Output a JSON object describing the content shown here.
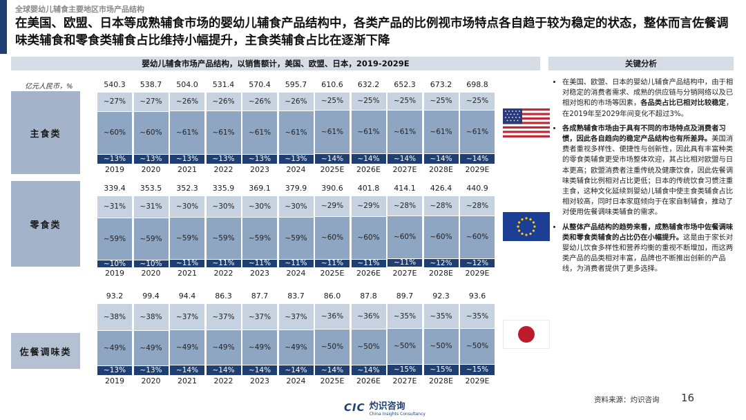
{
  "header": {
    "breadcrumb": "全球婴幼儿辅食主要地区市场产品结构",
    "headline": "在美国、欧盟、日本等成熟辅食市场的婴幼儿辅食产品结构中，各类产品的比例视市场特点各自趋于较为稳定的状态，整体而言佐餐调味类辅食和零食类辅食占比维持小幅提升，主食类辅食占比在逐渐下降",
    "accent_color": "#1f3f73"
  },
  "chart_data": {
    "type": "bar",
    "title": "婴幼儿辅食市场产品结构，以销售额计，美国、欧盟、日本，2019-2029E",
    "unit": "亿元人民币，%",
    "categories": [
      "2019",
      "2020",
      "2021",
      "2022",
      "2023",
      "2024",
      "2025E",
      "2026E",
      "2027E",
      "2028E",
      "2029E"
    ],
    "rows": [
      {
        "name": "主食类",
        "totals": [
          "540.3",
          "538.7",
          "504.0",
          "531.4",
          "570.4",
          "595.7",
          "610.6",
          "632.2",
          "652.3",
          "673.2",
          "698.8"
        ],
        "series": [
          {
            "name": "top",
            "values": [
              27,
              27,
              26,
              26,
              26,
              26,
              25,
              25,
              25,
              25,
              25
            ],
            "labels": [
              "~27%",
              "~27%",
              "~26%",
              "~26%",
              "~26%",
              "~26%",
              "~25%",
              "~25%",
              "~25%",
              "~25%",
              "~25%"
            ]
          },
          {
            "name": "middle",
            "values": [
              60,
              60,
              61,
              61,
              61,
              61,
              61,
              61,
              61,
              61,
              61
            ],
            "labels": [
              "~60%",
              "~60%",
              "~61%",
              "~61%",
              "~61%",
              "~61%",
              "~61%",
              "~61%",
              "~61%",
              "~61%",
              "~61%"
            ]
          },
          {
            "name": "bottom",
            "values": [
              13,
              13,
              13,
              13,
              13,
              13,
              14,
              14,
              14,
              14,
              14
            ],
            "labels": [
              "~13%",
              "~13%",
              "~13%",
              "~13%",
              "~13%",
              "~13%",
              "~14%",
              "~14%",
              "~14%",
              "~14%",
              "~14%"
            ]
          }
        ]
      },
      {
        "name": "零食类",
        "totals": [
          "339.4",
          "353.5",
          "352.3",
          "335.9",
          "369.1",
          "379.9",
          "390.6",
          "401.8",
          "414.1",
          "426.4",
          "440.9"
        ],
        "series": [
          {
            "name": "top",
            "values": [
              31,
              31,
              30,
              30,
              30,
              30,
              29,
              29,
              28,
              28,
              28
            ],
            "labels": [
              "~31%",
              "~31%",
              "~30%",
              "~30%",
              "~30%",
              "~30%",
              "~29%",
              "~29%",
              "~28%",
              "~28%",
              "~28%"
            ]
          },
          {
            "name": "middle",
            "values": [
              59,
              59,
              59,
              59,
              59,
              59,
              60,
              60,
              60,
              60,
              60
            ],
            "labels": [
              "~59%",
              "~59%",
              "~59%",
              "~59%",
              "~59%",
              "~59%",
              "~60%",
              "~60%",
              "~60%",
              "~60%",
              "~60%"
            ]
          },
          {
            "name": "bottom",
            "values": [
              10,
              10,
              11,
              11,
              11,
              11,
              11,
              11,
              11,
              12,
              12
            ],
            "labels": [
              "~10%",
              "~10%",
              "~11%",
              "~11%",
              "~11%",
              "~11%",
              "~11%",
              "~11%",
              "~11%",
              "~12%",
              "~12%"
            ]
          }
        ]
      },
      {
        "name": "佐餐调味类",
        "totals": [
          "93.2",
          "99.4",
          "94.4",
          "86.3",
          "87.7",
          "83.7",
          "86.0",
          "87.8",
          "89.7",
          "92.3",
          "93.6"
        ],
        "series": [
          {
            "name": "top",
            "values": [
              38,
              38,
              37,
              37,
              37,
              37,
              36,
              36,
              35,
              35,
              35
            ],
            "labels": [
              "~38%",
              "~38%",
              "~37%",
              "~37%",
              "~37%",
              "~37%",
              "~36%",
              "~36%",
              "~35%",
              "~35%",
              "~35%"
            ]
          },
          {
            "name": "middle",
            "values": [
              49,
              49,
              49,
              49,
              49,
              49,
              50,
              50,
              50,
              50,
              50
            ],
            "labels": [
              "~49%",
              "~49%",
              "~49%",
              "~49%",
              "~49%",
              "~49%",
              "~50%",
              "~50%",
              "~50%",
              "~50%",
              "~50%"
            ]
          },
          {
            "name": "bottom",
            "values": [
              13,
              13,
              14,
              14,
              14,
              14,
              14,
              14,
              15,
              15,
              15
            ],
            "labels": [
              "~13%",
              "~13%",
              "~14%",
              "~14%",
              "~14%",
              "~14%",
              "~14%",
              "~14%",
              "~15%",
              "~15%",
              "~15%"
            ]
          }
        ]
      }
    ],
    "colors": {
      "top": "#c7d2e0",
      "middle": "#8fa6c3",
      "bottom": "#1f3f73"
    }
  },
  "flags": {
    "us": {
      "name": "united-states"
    },
    "eu": {
      "name": "european-union"
    },
    "jp": {
      "name": "japan"
    }
  },
  "key_findings": {
    "title": "关键分析",
    "bullets": [
      {
        "normal1": "在美国、欧盟、日本的婴幼儿辅食产品结构中，由于相对稳定的消费者需求、成熟的供应链与分销网络以及已相对饱和的市场等因素，",
        "bold": "各品类占比已相对比较稳定",
        "normal2": "，在2019年至2029年间变化不超过3%。"
      },
      {
        "normal1": "",
        "bold": "各成熟辅食市场由于具有不同的市场特点及消费者习惯，因此各自趋向的稳定产品结构也有所差异。",
        "normal2": "美国消费者重视多样性、便捷性与创新性，因此具有丰富种类的零食类辅食更受市场整体欢迎，其占比相对欧盟与日本更高；欧盟消费者注重传统及健康饮食，因此佐餐调味类辅食比例相对占比更低；日本的传统饮食习惯注重主食，这种文化延续到婴幼儿辅食中使主食类辅食占比相对较高，同时日本家庭倾向于在家自制辅食，推动了对使用佐餐调味类辅食的需求。"
      },
      {
        "normal1": "",
        "bold": "从整体产品结构的趋势来看，成熟辅食市场中佐餐调味类和零食类辅食的占比仍在小幅提升。",
        "normal2": "这是由于家长对婴幼儿饮食多样性和营养均衡的重视不断增加，而这两类产品的品类相对丰富，品牌也不断推出创新的产品线，为消费者提供了更多选择。"
      }
    ]
  },
  "footer": {
    "logo_en_short": "CIC",
    "logo_cn": "灼识咨询",
    "logo_en": "China Insights Consultancy",
    "source": "资料来源：灼识咨询",
    "page_number": "16"
  }
}
